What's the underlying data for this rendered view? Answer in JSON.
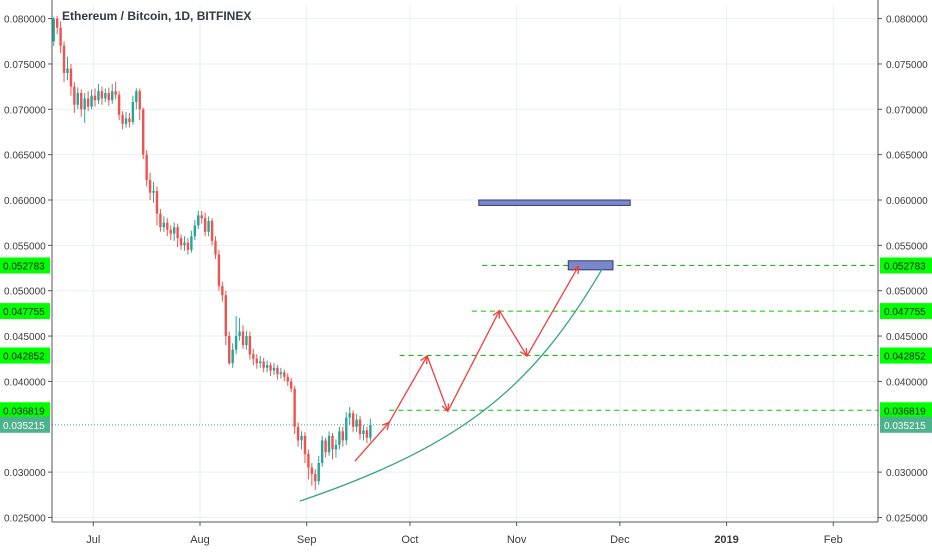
{
  "chart_data": {
    "type": "candlestick",
    "title": "Ethereum / Bitcoin, 1D, BITFINEX",
    "ylim": [
      0.0245,
      0.0815
    ],
    "x_range_days": [
      0,
      240
    ],
    "y_ticks": [
      "0.080000",
      "0.075000",
      "0.070000",
      "0.065000",
      "0.060000",
      "0.055000",
      "0.050000",
      "0.045000",
      "0.040000",
      "0.030000",
      "0.025000"
    ],
    "x_ticks": [
      {
        "label": "Jul",
        "day": 12
      },
      {
        "label": "Aug",
        "day": 43
      },
      {
        "label": "Sep",
        "day": 74
      },
      {
        "label": "Oct",
        "day": 104
      },
      {
        "label": "Nov",
        "day": 135
      },
      {
        "label": "Dec",
        "day": 165
      },
      {
        "label": "2019",
        "day": 196
      },
      {
        "label": "Feb",
        "day": 227
      }
    ],
    "price_levels": [
      {
        "label": "0.052783",
        "value": 0.052783,
        "style": "dashed-green",
        "from_day": 125
      },
      {
        "label": "0.047755",
        "value": 0.047755,
        "style": "dashed-green",
        "from_day": 122
      },
      {
        "label": "0.042852",
        "value": 0.042852,
        "style": "dashed-green",
        "from_day": 101
      },
      {
        "label": "0.036819",
        "value": 0.036819,
        "style": "dashed-green",
        "from_day": 98
      },
      {
        "label": "0.035215",
        "value": 0.035215,
        "style": "dotted-current",
        "from_day": 0
      }
    ],
    "candles": [
      [
        0,
        0.0775,
        0.08,
        0.0802,
        0.077
      ],
      [
        1,
        0.08,
        0.079,
        0.0803,
        0.0783
      ],
      [
        2,
        0.079,
        0.077,
        0.0797,
        0.0762
      ],
      [
        3,
        0.077,
        0.074,
        0.0775,
        0.073
      ],
      [
        4,
        0.074,
        0.0745,
        0.0758,
        0.0732
      ],
      [
        5,
        0.0745,
        0.0725,
        0.075,
        0.0715
      ],
      [
        6,
        0.0725,
        0.0705,
        0.073,
        0.0696
      ],
      [
        7,
        0.0705,
        0.0718,
        0.0724,
        0.07
      ],
      [
        8,
        0.0718,
        0.07,
        0.0722,
        0.0692
      ],
      [
        9,
        0.07,
        0.0712,
        0.0718,
        0.0685
      ],
      [
        10,
        0.0712,
        0.0703,
        0.072,
        0.0698
      ],
      [
        11,
        0.0703,
        0.0715,
        0.0722,
        0.07
      ],
      [
        12,
        0.0715,
        0.071,
        0.0723,
        0.0703
      ],
      [
        13,
        0.071,
        0.072,
        0.0728,
        0.0706
      ],
      [
        14,
        0.072,
        0.0712,
        0.0725,
        0.0705
      ],
      [
        15,
        0.0712,
        0.0718,
        0.0723,
        0.0708
      ],
      [
        16,
        0.0718,
        0.071,
        0.0724,
        0.0704
      ],
      [
        17,
        0.071,
        0.072,
        0.0728,
        0.0706
      ],
      [
        18,
        0.072,
        0.0716,
        0.073,
        0.0711
      ],
      [
        19,
        0.0716,
        0.0694,
        0.072,
        0.0688
      ],
      [
        20,
        0.0694,
        0.0684,
        0.0698,
        0.0678
      ],
      [
        21,
        0.0684,
        0.069,
        0.0697,
        0.068
      ],
      [
        22,
        0.069,
        0.0686,
        0.0696,
        0.068
      ],
      [
        23,
        0.0686,
        0.0708,
        0.0715,
        0.0683
      ],
      [
        24,
        0.0708,
        0.072,
        0.0723,
        0.07
      ],
      [
        25,
        0.072,
        0.07,
        0.0723,
        0.0688
      ],
      [
        26,
        0.07,
        0.065,
        0.0702,
        0.0645
      ],
      [
        27,
        0.065,
        0.0622,
        0.0655,
        0.0615
      ],
      [
        28,
        0.0622,
        0.0608,
        0.063,
        0.06
      ],
      [
        29,
        0.0608,
        0.061,
        0.062,
        0.0597
      ],
      [
        30,
        0.061,
        0.0585,
        0.0615,
        0.0572
      ],
      [
        31,
        0.0585,
        0.057,
        0.059,
        0.0565
      ],
      [
        32,
        0.057,
        0.0575,
        0.0582,
        0.0565
      ],
      [
        33,
        0.0575,
        0.0567,
        0.058,
        0.056
      ],
      [
        34,
        0.0567,
        0.0563,
        0.0572,
        0.0556
      ],
      [
        35,
        0.0563,
        0.057,
        0.0575,
        0.0555
      ],
      [
        36,
        0.057,
        0.0558,
        0.0574,
        0.0548
      ],
      [
        37,
        0.0558,
        0.055,
        0.0562,
        0.0545
      ],
      [
        38,
        0.055,
        0.0553,
        0.056,
        0.0544
      ],
      [
        39,
        0.0553,
        0.0545,
        0.0558,
        0.054
      ],
      [
        40,
        0.0545,
        0.056,
        0.0566,
        0.0542
      ],
      [
        41,
        0.056,
        0.0572,
        0.0578,
        0.0556
      ],
      [
        42,
        0.0572,
        0.0583,
        0.0588,
        0.0568
      ],
      [
        43,
        0.0583,
        0.058,
        0.0588,
        0.0574
      ],
      [
        44,
        0.058,
        0.0565,
        0.0586,
        0.056
      ],
      [
        45,
        0.0565,
        0.0577,
        0.0582,
        0.056
      ],
      [
        46,
        0.0577,
        0.0555,
        0.058,
        0.055
      ],
      [
        47,
        0.0555,
        0.054,
        0.056,
        0.0535
      ],
      [
        48,
        0.054,
        0.0505,
        0.0545,
        0.05
      ],
      [
        49,
        0.0505,
        0.0495,
        0.051,
        0.0488
      ],
      [
        50,
        0.0495,
        0.045,
        0.05,
        0.044
      ],
      [
        51,
        0.045,
        0.042,
        0.0455,
        0.0418
      ],
      [
        52,
        0.042,
        0.0435,
        0.0442,
        0.0415
      ],
      [
        53,
        0.0435,
        0.045,
        0.0472,
        0.043
      ],
      [
        54,
        0.045,
        0.0455,
        0.047,
        0.0445
      ],
      [
        55,
        0.0455,
        0.044,
        0.0462,
        0.0436
      ],
      [
        56,
        0.044,
        0.045,
        0.0456,
        0.0435
      ],
      [
        57,
        0.045,
        0.043,
        0.0455,
        0.0424
      ],
      [
        58,
        0.043,
        0.0425,
        0.0436,
        0.0418
      ],
      [
        59,
        0.0425,
        0.042,
        0.043,
        0.0414
      ],
      [
        60,
        0.042,
        0.0422,
        0.0428,
        0.0415
      ],
      [
        61,
        0.0422,
        0.0415,
        0.0426,
        0.041
      ],
      [
        62,
        0.0415,
        0.0418,
        0.0423,
        0.041
      ],
      [
        63,
        0.0418,
        0.0412,
        0.0421,
        0.0406
      ],
      [
        64,
        0.0412,
        0.0415,
        0.042,
        0.0407
      ],
      [
        65,
        0.0415,
        0.0408,
        0.0418,
        0.0402
      ],
      [
        66,
        0.0408,
        0.041,
        0.0415,
        0.0403
      ],
      [
        67,
        0.041,
        0.0405,
        0.0413,
        0.04
      ],
      [
        68,
        0.0405,
        0.04,
        0.0409,
        0.0395
      ],
      [
        69,
        0.04,
        0.0392,
        0.0404,
        0.0388
      ],
      [
        70,
        0.0392,
        0.035,
        0.0395,
        0.0342
      ],
      [
        71,
        0.035,
        0.0335,
        0.0355,
        0.0328
      ],
      [
        72,
        0.0335,
        0.034,
        0.0345,
        0.0325
      ],
      [
        73,
        0.034,
        0.032,
        0.0344,
        0.031
      ],
      [
        74,
        0.032,
        0.0305,
        0.0325,
        0.0292
      ],
      [
        75,
        0.0305,
        0.0298,
        0.031,
        0.0285
      ],
      [
        76,
        0.0298,
        0.029,
        0.0303,
        0.028
      ],
      [
        77,
        0.029,
        0.031,
        0.0318,
        0.0286
      ],
      [
        78,
        0.031,
        0.0335,
        0.034,
        0.0306
      ],
      [
        79,
        0.0335,
        0.0322,
        0.0338,
        0.0316
      ],
      [
        80,
        0.0322,
        0.034,
        0.0345,
        0.0318
      ],
      [
        81,
        0.034,
        0.0325,
        0.0343,
        0.0314
      ],
      [
        82,
        0.0325,
        0.033,
        0.0336,
        0.0316
      ],
      [
        83,
        0.033,
        0.0345,
        0.035,
        0.0325
      ],
      [
        84,
        0.0345,
        0.0335,
        0.035,
        0.0328
      ],
      [
        85,
        0.0335,
        0.036,
        0.0366,
        0.033
      ],
      [
        86,
        0.036,
        0.0365,
        0.0372,
        0.0352
      ],
      [
        87,
        0.0365,
        0.035,
        0.0368,
        0.0344
      ],
      [
        88,
        0.035,
        0.0358,
        0.0364,
        0.0344
      ],
      [
        89,
        0.0358,
        0.0342,
        0.0362,
        0.0336
      ],
      [
        90,
        0.0342,
        0.0346,
        0.0352,
        0.0335
      ],
      [
        91,
        0.0346,
        0.0338,
        0.035,
        0.0332
      ],
      [
        92,
        0.0338,
        0.0352,
        0.0359,
        0.0334
      ]
    ],
    "annotations": {
      "boxes": [
        {
          "name": "upper-target-box",
          "x0": 124,
          "x1": 168,
          "y0": 0.06,
          "y1": 0.0594,
          "color": "#7b87c6"
        },
        {
          "name": "lower-target-box",
          "x0": 150,
          "x1": 163,
          "y0": 0.0533,
          "y1": 0.0523,
          "color": "#7b87c6"
        }
      ],
      "zigzag": {
        "color": "#ef3f3f",
        "points": [
          [
            88,
            0.0312
          ],
          [
            98,
            0.0355
          ],
          [
            109,
            0.0428
          ],
          [
            115,
            0.0367
          ],
          [
            130,
            0.0478
          ],
          [
            138,
            0.0428
          ],
          [
            153,
            0.0527
          ]
        ]
      },
      "curve": {
        "color": "#3aa287",
        "points": [
          [
            72,
            0.0268
          ],
          [
            120,
            0.033
          ],
          [
            140,
            0.0395
          ],
          [
            160,
            0.0525
          ]
        ]
      }
    },
    "colors": {
      "up": "#26a69a",
      "down": "#ef5350",
      "level_line": "#00c800",
      "level_label_bg": "#00ff00",
      "current_label_bg": "#4db38d",
      "grid": "#e9eff3"
    }
  }
}
